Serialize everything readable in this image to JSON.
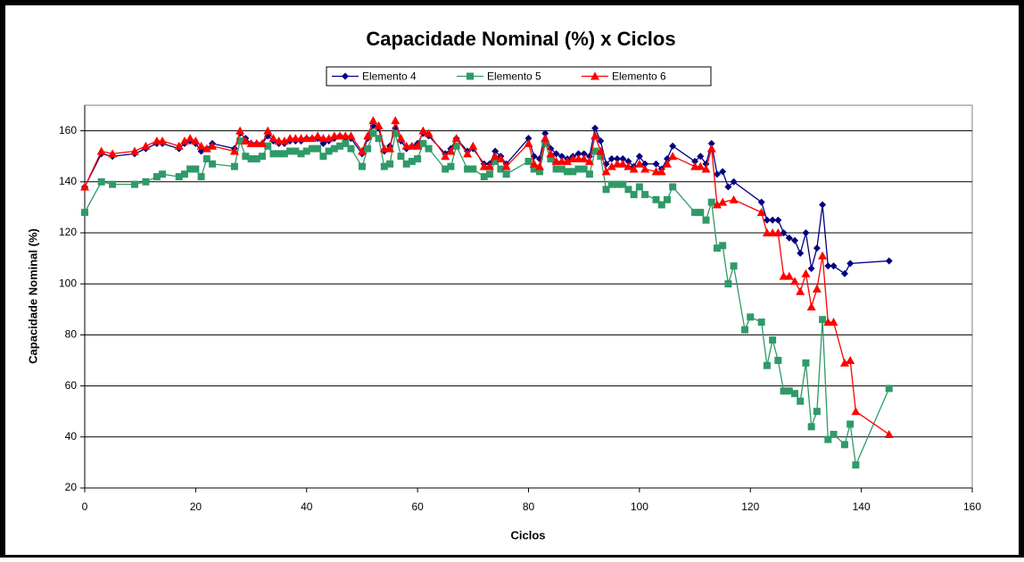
{
  "chart_data": {
    "type": "line",
    "title": "Capacidade Nominal (%) x Ciclos",
    "xlabel": "Ciclos",
    "ylabel": "Capacidade Nominal (%)",
    "xlim": [
      0,
      160
    ],
    "xticks": [
      0,
      20,
      40,
      60,
      80,
      100,
      120,
      140,
      160
    ],
    "ylim": [
      20,
      170
    ],
    "yticks": [
      20,
      40,
      60,
      80,
      100,
      120,
      140,
      160
    ],
    "grid": true,
    "legend": "top",
    "series": [
      {
        "name": "Elemento 4",
        "color": "#000080",
        "marker": "diamond",
        "x": [
          0,
          3,
          5,
          9,
          11,
          13,
          14,
          17,
          18,
          19,
          20,
          21,
          22,
          23,
          27,
          28,
          29,
          30,
          31,
          32,
          33,
          34,
          35,
          36,
          37,
          38,
          39,
          40,
          41,
          42,
          43,
          44,
          45,
          46,
          47,
          48,
          50,
          51,
          52,
          53,
          54,
          55,
          56,
          57,
          58,
          59,
          60,
          61,
          62,
          65,
          66,
          67,
          69,
          70,
          72,
          73,
          74,
          75,
          76,
          80,
          81,
          82,
          83,
          84,
          85,
          86,
          87,
          88,
          89,
          90,
          91,
          92,
          93,
          94,
          95,
          96,
          97,
          98,
          99,
          100,
          101,
          103,
          104,
          105,
          106,
          110,
          111,
          112,
          113,
          114,
          115,
          116,
          117,
          122,
          123,
          124,
          125,
          126,
          127,
          128,
          129,
          130,
          131,
          132,
          133,
          134,
          135,
          137,
          138,
          145
        ],
        "values": [
          138,
          151,
          150,
          151,
          153,
          155,
          155,
          153,
          155,
          156,
          155,
          152,
          153,
          155,
          153,
          159,
          157,
          155,
          155,
          155,
          158,
          156,
          155,
          155,
          156,
          156,
          156,
          157,
          157,
          157,
          155,
          156,
          157,
          158,
          157,
          157,
          151,
          157,
          162,
          161,
          152,
          154,
          161,
          156,
          153,
          154,
          155,
          159,
          158,
          151,
          153,
          157,
          152,
          153,
          147,
          147,
          152,
          150,
          147,
          157,
          150,
          149,
          159,
          153,
          151,
          150,
          149,
          150,
          151,
          151,
          150,
          161,
          156,
          147,
          149,
          149,
          149,
          148,
          146,
          150,
          147,
          147,
          145,
          149,
          154,
          148,
          150,
          147,
          155,
          143,
          144,
          138,
          140,
          132,
          125,
          125,
          125,
          120,
          118,
          117,
          112,
          120,
          106,
          114,
          131,
          107,
          107,
          104,
          108,
          109
        ]
      },
      {
        "name": "Elemento 5",
        "color": "#2f9a68",
        "marker": "square",
        "x": [
          0,
          3,
          5,
          9,
          11,
          13,
          14,
          17,
          18,
          19,
          20,
          21,
          22,
          23,
          27,
          28,
          29,
          30,
          31,
          32,
          33,
          34,
          35,
          36,
          37,
          38,
          39,
          40,
          41,
          42,
          43,
          44,
          45,
          46,
          47,
          48,
          50,
          51,
          52,
          53,
          54,
          55,
          56,
          57,
          58,
          59,
          60,
          61,
          62,
          65,
          66,
          67,
          69,
          70,
          72,
          73,
          74,
          75,
          76,
          80,
          81,
          82,
          83,
          84,
          85,
          86,
          87,
          88,
          89,
          90,
          91,
          92,
          93,
          94,
          95,
          96,
          97,
          98,
          99,
          100,
          101,
          103,
          104,
          105,
          106,
          110,
          111,
          112,
          113,
          114,
          115,
          116,
          117,
          119,
          120,
          122,
          123,
          124,
          125,
          126,
          127,
          128,
          129,
          130,
          131,
          132,
          133,
          134,
          135,
          137,
          138,
          139,
          145
        ],
        "values": [
          128,
          140,
          139,
          139,
          140,
          142,
          143,
          142,
          143,
          145,
          145,
          142,
          149,
          147,
          146,
          156,
          150,
          149,
          149,
          150,
          154,
          151,
          151,
          151,
          152,
          152,
          151,
          152,
          153,
          153,
          150,
          152,
          153,
          154,
          155,
          153,
          146,
          153,
          159,
          157,
          146,
          147,
          159,
          150,
          147,
          148,
          149,
          155,
          153,
          145,
          146,
          154,
          145,
          145,
          142,
          143,
          148,
          145,
          143,
          148,
          145,
          144,
          155,
          149,
          145,
          145,
          144,
          144,
          145,
          145,
          143,
          152,
          150,
          137,
          139,
          139,
          139,
          137,
          135,
          138,
          135,
          133,
          131,
          133,
          138,
          128,
          128,
          125,
          132,
          114,
          115,
          100,
          107,
          82,
          87,
          85,
          68,
          78,
          70,
          58,
          58,
          57,
          54,
          69,
          44,
          50,
          86,
          39,
          41,
          37,
          45,
          29,
          59
        ]
      },
      {
        "name": "Elemento 6",
        "color": "#ff0000",
        "marker": "triangle",
        "x": [
          0,
          3,
          5,
          9,
          11,
          13,
          14,
          17,
          18,
          19,
          20,
          21,
          22,
          23,
          27,
          28,
          29,
          30,
          31,
          32,
          33,
          34,
          35,
          36,
          37,
          38,
          39,
          40,
          41,
          42,
          43,
          44,
          45,
          46,
          47,
          48,
          50,
          51,
          52,
          53,
          54,
          55,
          56,
          57,
          58,
          59,
          60,
          61,
          62,
          65,
          66,
          67,
          69,
          70,
          72,
          73,
          74,
          75,
          76,
          80,
          81,
          82,
          83,
          84,
          85,
          86,
          87,
          88,
          89,
          90,
          91,
          92,
          93,
          94,
          95,
          96,
          97,
          98,
          99,
          100,
          101,
          103,
          104,
          105,
          106,
          110,
          111,
          112,
          113,
          114,
          115,
          117,
          122,
          123,
          124,
          125,
          126,
          127,
          128,
          129,
          130,
          131,
          132,
          133,
          134,
          135,
          137,
          138,
          139,
          145
        ],
        "values": [
          138,
          152,
          151,
          152,
          154,
          156,
          156,
          154,
          156,
          157,
          156,
          154,
          153,
          154,
          152,
          160,
          156,
          155,
          155,
          155,
          160,
          157,
          156,
          156,
          157,
          157,
          157,
          157,
          157,
          158,
          157,
          157,
          158,
          158,
          158,
          158,
          152,
          158,
          164,
          162,
          153,
          153,
          164,
          157,
          154,
          154,
          154,
          160,
          159,
          150,
          152,
          157,
          151,
          154,
          146,
          146,
          150,
          149,
          146,
          155,
          147,
          146,
          157,
          151,
          148,
          148,
          148,
          149,
          149,
          149,
          148,
          158,
          152,
          144,
          146,
          147,
          147,
          146,
          145,
          147,
          145,
          144,
          144,
          147,
          150,
          146,
          146,
          145,
          153,
          131,
          132,
          133,
          128,
          120,
          120,
          120,
          103,
          103,
          101,
          97,
          104,
          91,
          98,
          111,
          85,
          85,
          69,
          70,
          50,
          41
        ]
      }
    ]
  }
}
